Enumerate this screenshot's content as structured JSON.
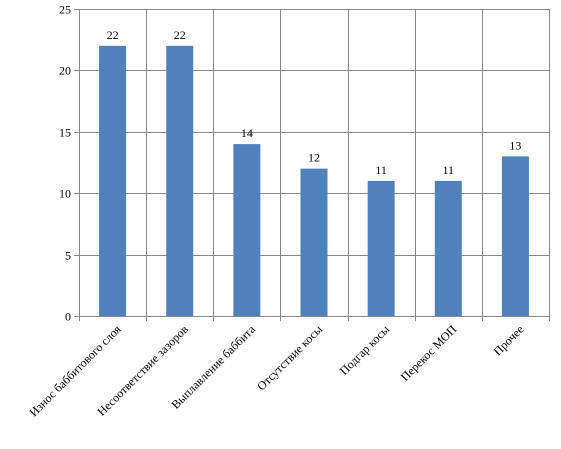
{
  "chart_data": {
    "type": "bar",
    "categories": [
      "Износ баббитового слоя",
      "Несоответствие зазоров",
      "Выплавление баббита",
      "Отсутствие косы",
      "Подгар косы",
      "Перекос МОП",
      "Прочее"
    ],
    "values": [
      22,
      22,
      14,
      12,
      11,
      11,
      13
    ],
    "ylim": [
      0,
      25
    ],
    "yticks": [
      0,
      5,
      10,
      15,
      20,
      25
    ],
    "grid": "on",
    "legend": "none",
    "bar_color": "#4F81BD",
    "grid_color": "#888888",
    "title": "",
    "xlabel": "",
    "ylabel": ""
  }
}
